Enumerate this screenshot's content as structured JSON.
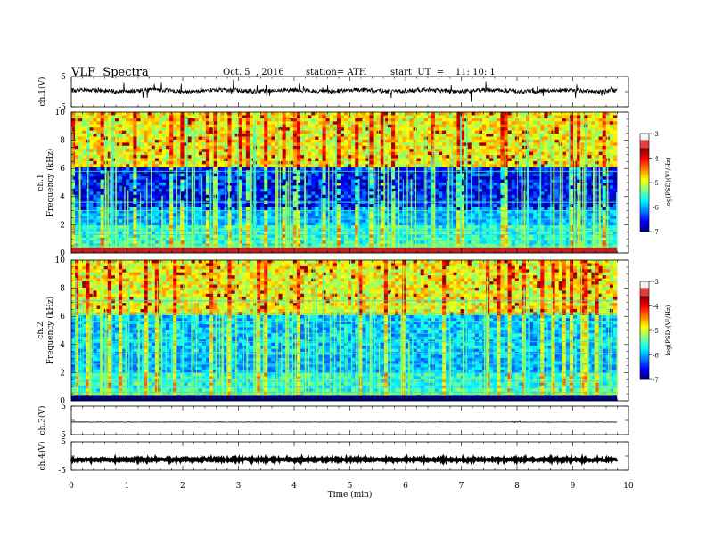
{
  "header": {
    "title": "VLF  Spectra",
    "date": "Oct. 5  , 2016",
    "station": "station= ATH",
    "start": "start  UT  =    11: 10: 1"
  },
  "chart_data": [
    {
      "type": "line",
      "panel": "ch1-waveform",
      "ylabel": "ch.1(V)",
      "y_ticks": [
        "5",
        "-5"
      ],
      "ylim": [
        -5,
        5
      ],
      "xlim": [
        0,
        10
      ]
    },
    {
      "type": "heatmap",
      "panel": "ch1-spectrogram",
      "ylabel": [
        "ch.1",
        "Frequency  (kHz)"
      ],
      "y_ticks": [
        "0",
        "2",
        "4",
        "6",
        "8",
        "10"
      ],
      "ylim": [
        0,
        10
      ],
      "xlim": [
        0,
        10
      ],
      "colorbar": {
        "label": "log(PSD)(V²/Hz)",
        "ticks": [
          "-3",
          "-4",
          "-5",
          "-6",
          "-7"
        ],
        "range": [
          -7,
          -3
        ]
      }
    },
    {
      "type": "heatmap",
      "panel": "ch2-spectrogram",
      "ylabel": [
        "ch.2",
        "Frequency  (kHz)"
      ],
      "y_ticks": [
        "0",
        "2",
        "4",
        "6",
        "8",
        "10"
      ],
      "ylim": [
        0,
        10
      ],
      "xlim": [
        0,
        10
      ],
      "colorbar": {
        "label": "log(PSD)(V²/Hz)",
        "ticks": [
          "-3",
          "-4",
          "-5",
          "-6",
          "-7"
        ],
        "range": [
          -7,
          -3
        ]
      }
    },
    {
      "type": "line",
      "panel": "ch3-waveform",
      "ylabel": "ch.3(V)",
      "y_ticks": [
        "5",
        "-5"
      ],
      "ylim": [
        -5,
        5
      ],
      "xlim": [
        0,
        10
      ]
    },
    {
      "type": "line",
      "panel": "ch4-waveform",
      "ylabel": "ch.4(V)",
      "y_ticks": [
        "5",
        "-5"
      ],
      "ylim": [
        -5,
        5
      ],
      "xlim": [
        0,
        10
      ],
      "xlabel": "Time  (min)",
      "x_ticks": [
        "0",
        "1",
        "2",
        "3",
        "4",
        "5",
        "6",
        "7",
        "8",
        "9",
        "10"
      ]
    }
  ]
}
